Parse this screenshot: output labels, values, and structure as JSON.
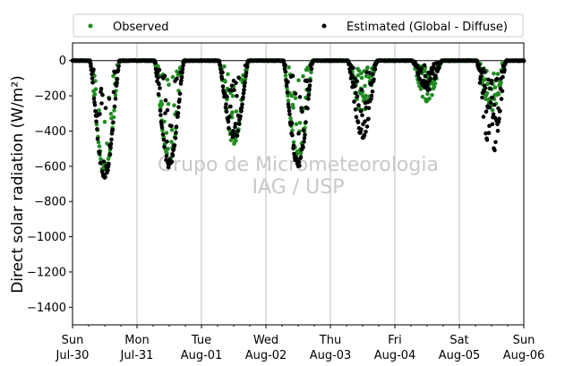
{
  "chart_data": {
    "type": "scatter",
    "title": "",
    "ylabel": "Direct solar radiation (W/m²)",
    "xlabel": "",
    "ylim": [
      -1500,
      100
    ],
    "yticks": [
      0,
      -200,
      -400,
      -600,
      -800,
      -1000,
      -1200,
      -1400
    ],
    "xlim": [
      "2017-07-30 00:00",
      "2017-08-06 00:00"
    ],
    "xticks": [
      {
        "day": "Sun",
        "date": "Jul-30"
      },
      {
        "day": "Mon",
        "date": "Jul-31"
      },
      {
        "day": "Tue",
        "date": "Aug-01"
      },
      {
        "day": "Wed",
        "date": "Aug-02"
      },
      {
        "day": "Thu",
        "date": "Aug-03"
      },
      {
        "day": "Fri",
        "date": "Aug-04"
      },
      {
        "day": "Sat",
        "date": "Aug-05"
      },
      {
        "day": "Sun",
        "date": "Aug-06"
      }
    ],
    "grid": "vertical",
    "legend_placement": "top",
    "zero_line": true,
    "watermark": [
      "Grupo de Micrometeorologia",
      "IAG / USP"
    ],
    "series": [
      {
        "name": "Observed",
        "color": "#228b22",
        "daily_profiles": [
          {
            "day": 0,
            "min": -650,
            "scatter": 0.35
          },
          {
            "day": 1,
            "min": -580,
            "scatter": 0.55
          },
          {
            "day": 2,
            "min": -480,
            "scatter": 0.55
          },
          {
            "day": 3,
            "min": -560,
            "scatter": 0.45
          },
          {
            "day": 4,
            "min": -300,
            "scatter": 0.8
          },
          {
            "day": 5,
            "min": -240,
            "scatter": 0.8
          },
          {
            "day": 6,
            "min": -290,
            "scatter": 0.8
          }
        ]
      },
      {
        "name": "Estimated (Global - Diffuse)",
        "color": "#000000",
        "daily_profiles": [
          {
            "day": 0,
            "min": -680,
            "scatter": 0.3
          },
          {
            "day": 1,
            "min": -610,
            "scatter": 0.45
          },
          {
            "day": 2,
            "min": -470,
            "scatter": 0.55
          },
          {
            "day": 3,
            "min": -610,
            "scatter": 0.4
          },
          {
            "day": 4,
            "min": -440,
            "scatter": 0.8
          },
          {
            "day": 5,
            "min": -170,
            "scatter": 0.8
          },
          {
            "day": 6,
            "min": -560,
            "scatter": 0.85
          }
        ]
      }
    ]
  }
}
